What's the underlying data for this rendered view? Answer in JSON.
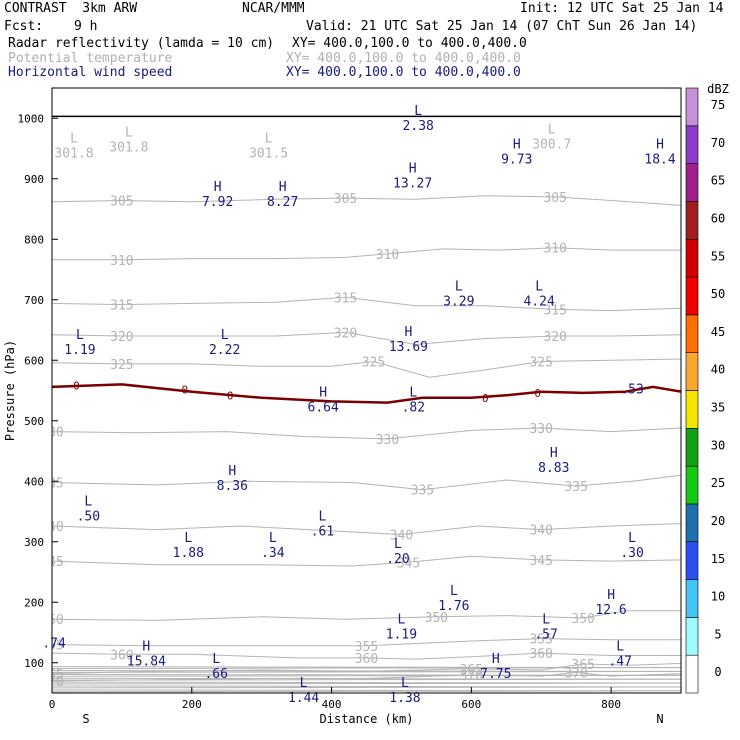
{
  "header": {
    "model": "CONTRAST  3km ARW",
    "center": "NCAR/MMM",
    "init": "Init: 12 UTC Sat 25 Jan 14",
    "fcst_label": "Fcst:",
    "fcst_value": "9 h",
    "valid": "Valid: 21 UTC Sat 25 Jan 14 (07 ChT Sun 26 Jan 14)"
  },
  "fields": [
    {
      "name": "Radar reflectivity (lamda = 10 cm)",
      "xy": "XY= 400.0,100.0 to 400.0,400.0"
    },
    {
      "name": "Potential temperature",
      "xy": "XY= 400.0,100.0 to 400.0,400.0"
    },
    {
      "name": "Horizontal wind speed",
      "xy": "XY= 400.0,100.0 to 400.0,400.0"
    }
  ],
  "colors": {
    "theta": "#b4b4b4",
    "wind_label": "#1a1a80",
    "freezing_line": "#7a0000",
    "ground": "#000000"
  },
  "chart_data": {
    "type": "cross-section",
    "xlabel": "Distance (km)",
    "ylabel": "Pressure (hPa)",
    "xlim": [
      0,
      900
    ],
    "ylim": [
      1050,
      50
    ],
    "xticks": [
      0,
      200,
      400,
      600,
      800
    ],
    "yticks": [
      100,
      200,
      300,
      400,
      500,
      600,
      700,
      800,
      900,
      1000
    ],
    "endpoints": {
      "left": "S",
      "right": "N"
    },
    "colorbar": {
      "title": "dBZ",
      "levels": [
        0,
        5,
        10,
        15,
        20,
        25,
        30,
        35,
        40,
        45,
        50,
        55,
        60,
        65,
        70,
        75
      ],
      "colors": [
        "#ffffff",
        "#9ffcfc",
        "#44c4f4",
        "#2c50f0",
        "#2070b0",
        "#14c814",
        "#14a014",
        "#f4e400",
        "#f8a830",
        "#ff6e00",
        "#f00000",
        "#d00000",
        "#a02020",
        "#a0208c",
        "#8c3cc8",
        "#c890d8"
      ]
    },
    "theta_contours": [
      {
        "label": "370",
        "points": [
          [
            0,
            70
          ],
          [
            150,
            72
          ],
          [
            300,
            74
          ],
          [
            450,
            74
          ],
          [
            600,
            80
          ],
          [
            700,
            78
          ],
          [
            750,
            84
          ],
          [
            800,
            78
          ],
          [
            900,
            82
          ]
        ]
      },
      {
        "label": "365",
        "points": [
          [
            0,
            82
          ],
          [
            150,
            86
          ],
          [
            300,
            88
          ],
          [
            450,
            86
          ],
          [
            600,
            90
          ],
          [
            700,
            88
          ],
          [
            760,
            98
          ],
          [
            830,
            96
          ],
          [
            900,
            99
          ]
        ]
      },
      {
        "label": "360",
        "points": [
          [
            0,
            116
          ],
          [
            100,
            114
          ],
          [
            200,
            114
          ],
          [
            350,
            108
          ],
          [
            450,
            108
          ],
          [
            520,
            106
          ],
          [
            600,
            110
          ],
          [
            700,
            116
          ],
          [
            800,
            112
          ],
          [
            900,
            112
          ]
        ]
      },
      {
        "label": "355",
        "points": [
          [
            0,
            130
          ],
          [
            150,
            128
          ],
          [
            300,
            128
          ],
          [
            450,
            128
          ],
          [
            600,
            136
          ],
          [
            700,
            140
          ],
          [
            800,
            138
          ],
          [
            900,
            138
          ]
        ]
      },
      {
        "label": "350",
        "points": [
          [
            0,
            172
          ],
          [
            150,
            170
          ],
          [
            300,
            176
          ],
          [
            420,
            172
          ],
          [
            550,
            176
          ],
          [
            650,
            178
          ],
          [
            760,
            174
          ],
          [
            820,
            186
          ],
          [
            900,
            186
          ]
        ]
      },
      {
        "label": "345",
        "points": [
          [
            0,
            268
          ],
          [
            150,
            262
          ],
          [
            300,
            262
          ],
          [
            430,
            260
          ],
          [
            510,
            266
          ],
          [
            600,
            276
          ],
          [
            700,
            270
          ],
          [
            800,
            268
          ],
          [
            900,
            270
          ]
        ]
      },
      {
        "label": "340",
        "points": [
          [
            0,
            326
          ],
          [
            150,
            320
          ],
          [
            270,
            326
          ],
          [
            400,
            318
          ],
          [
            500,
            312
          ],
          [
            610,
            326
          ],
          [
            700,
            320
          ],
          [
            800,
            326
          ],
          [
            900,
            330
          ]
        ]
      },
      {
        "label": "335",
        "points": [
          [
            0,
            398
          ],
          [
            150,
            394
          ],
          [
            280,
            400
          ],
          [
            430,
            398
          ],
          [
            530,
            386
          ],
          [
            650,
            402
          ],
          [
            750,
            392
          ],
          [
            830,
            400
          ],
          [
            900,
            410
          ]
        ]
      },
      {
        "label": "330",
        "points": [
          [
            0,
            482
          ],
          [
            120,
            480
          ],
          [
            250,
            482
          ],
          [
            360,
            474
          ],
          [
            480,
            470
          ],
          [
            600,
            484
          ],
          [
            700,
            488
          ],
          [
            800,
            482
          ],
          [
            900,
            488
          ]
        ]
      },
      {
        "label": "325",
        "points": [
          [
            0,
            596
          ],
          [
            100,
            594
          ],
          [
            200,
            594
          ],
          [
            300,
            590
          ],
          [
            400,
            590
          ],
          [
            460,
            598
          ],
          [
            540,
            572
          ],
          [
            620,
            584
          ],
          [
            700,
            598
          ],
          [
            800,
            600
          ],
          [
            900,
            602
          ]
        ]
      },
      {
        "label": "320",
        "points": [
          [
            0,
            642
          ],
          [
            100,
            640
          ],
          [
            200,
            640
          ],
          [
            320,
            640
          ],
          [
            420,
            646
          ],
          [
            520,
            626
          ],
          [
            620,
            636
          ],
          [
            720,
            640
          ],
          [
            800,
            640
          ],
          [
            900,
            642
          ]
        ]
      },
      {
        "label": "315",
        "points": [
          [
            0,
            694
          ],
          [
            100,
            692
          ],
          [
            200,
            694
          ],
          [
            320,
            696
          ],
          [
            420,
            704
          ],
          [
            520,
            690
          ],
          [
            620,
            690
          ],
          [
            720,
            684
          ],
          [
            800,
            682
          ],
          [
            900,
            686
          ]
        ]
      },
      {
        "label": "310",
        "points": [
          [
            0,
            766
          ],
          [
            100,
            766
          ],
          [
            200,
            768
          ],
          [
            320,
            768
          ],
          [
            420,
            770
          ],
          [
            480,
            776
          ],
          [
            560,
            784
          ],
          [
            640,
            782
          ],
          [
            720,
            786
          ],
          [
            800,
            782
          ],
          [
            900,
            782
          ]
        ]
      },
      {
        "label": "305",
        "points": [
          [
            0,
            862
          ],
          [
            100,
            864
          ],
          [
            200,
            862
          ],
          [
            320,
            866
          ],
          [
            420,
            868
          ],
          [
            520,
            866
          ],
          [
            620,
            872
          ],
          [
            720,
            870
          ],
          [
            800,
            864
          ],
          [
            900,
            856
          ]
        ]
      }
    ],
    "freezing_line": [
      [
        0,
        556
      ],
      [
        100,
        560
      ],
      [
        200,
        548
      ],
      [
        300,
        538
      ],
      [
        400,
        532
      ],
      [
        480,
        530
      ],
      [
        530,
        538
      ],
      [
        600,
        538
      ],
      [
        650,
        542
      ],
      [
        700,
        548
      ],
      [
        760,
        546
      ],
      [
        820,
        548
      ],
      [
        860,
        556
      ],
      [
        900,
        548
      ]
    ],
    "wind_speed_labels": [
      {
        "flag": "L",
        "value": ".66",
        "x": 235,
        "p": 100
      },
      {
        "flag": "L",
        "value": "1.44",
        "x": 360,
        "p": 60
      },
      {
        "flag": "L",
        "value": "1.38",
        "x": 505,
        "p": 60
      },
      {
        "flag": "H",
        "value": "15.84",
        "x": 135,
        "p": 120
      },
      {
        "flag": "H",
        "value": "7.75",
        "x": 635,
        "p": 100
      },
      {
        "flag": "L",
        "value": ".47",
        "x": 813,
        "p": 120
      },
      {
        "flag": "",
        "value": ".74",
        "x": 3,
        "p": 150
      },
      {
        "flag": "L",
        "value": "1.19",
        "x": 500,
        "p": 165
      },
      {
        "flag": "L",
        "value": ".57",
        "x": 707,
        "p": 165
      },
      {
        "flag": "H",
        "value": "12.6",
        "x": 800,
        "p": 205
      },
      {
        "flag": "L",
        "value": "1.76",
        "x": 575,
        "p": 212
      },
      {
        "flag": "L",
        "value": ".20",
        "x": 495,
        "p": 290
      },
      {
        "flag": "L",
        "value": "1.88",
        "x": 195,
        "p": 300
      },
      {
        "flag": "L",
        "value": ".34",
        "x": 316,
        "p": 300
      },
      {
        "flag": "L",
        "value": ".61",
        "x": 387,
        "p": 335
      },
      {
        "flag": "L",
        "value": ".30",
        "x": 830,
        "p": 300
      },
      {
        "flag": "L",
        "value": ".50",
        "x": 52,
        "p": 360
      },
      {
        "flag": "H",
        "value": "8.36",
        "x": 258,
        "p": 410
      },
      {
        "flag": "H",
        "value": "8.83",
        "x": 718,
        "p": 440
      },
      {
        "flag": "H",
        "value": "6.64",
        "x": 388,
        "p": 540
      },
      {
        "flag": "L",
        "value": ".82",
        "x": 517,
        "p": 540
      },
      {
        "flag": "",
        "value": ".53",
        "x": 830,
        "p": 570
      },
      {
        "flag": "L",
        "value": "1.19",
        "x": 40,
        "p": 635
      },
      {
        "flag": "L",
        "value": "2.22",
        "x": 247,
        "p": 635
      },
      {
        "flag": "H",
        "value": "13.69",
        "x": 510,
        "p": 640
      },
      {
        "flag": "L",
        "value": "3.29",
        "x": 582,
        "p": 715
      },
      {
        "flag": "L",
        "value": "4.24",
        "x": 697,
        "p": 715
      },
      {
        "flag": "H",
        "value": "7.92",
        "x": 237,
        "p": 880
      },
      {
        "flag": "H",
        "value": "8.27",
        "x": 330,
        "p": 880
      },
      {
        "flag": "H",
        "value": "13.27",
        "x": 516,
        "p": 910
      },
      {
        "flag": "H",
        "value": "9.73",
        "x": 665,
        "p": 950
      },
      {
        "flag": "H",
        "value": "18.4",
        "x": 870,
        "p": 950
      },
      {
        "flag": "L",
        "value": "2.38",
        "x": 524,
        "p": 1005
      }
    ],
    "theta_min_labels": [
      {
        "flag": "L",
        "value": "301.8",
        "x": 0,
        "p": 960
      },
      {
        "flag": "L",
        "value": "301.8",
        "x": 110,
        "p": 970
      },
      {
        "flag": "L",
        "value": "301.5",
        "x": 310,
        "p": 960
      },
      {
        "flag": "L",
        "value": "300.7",
        "x": 715,
        "p": 975
      }
    ]
  }
}
